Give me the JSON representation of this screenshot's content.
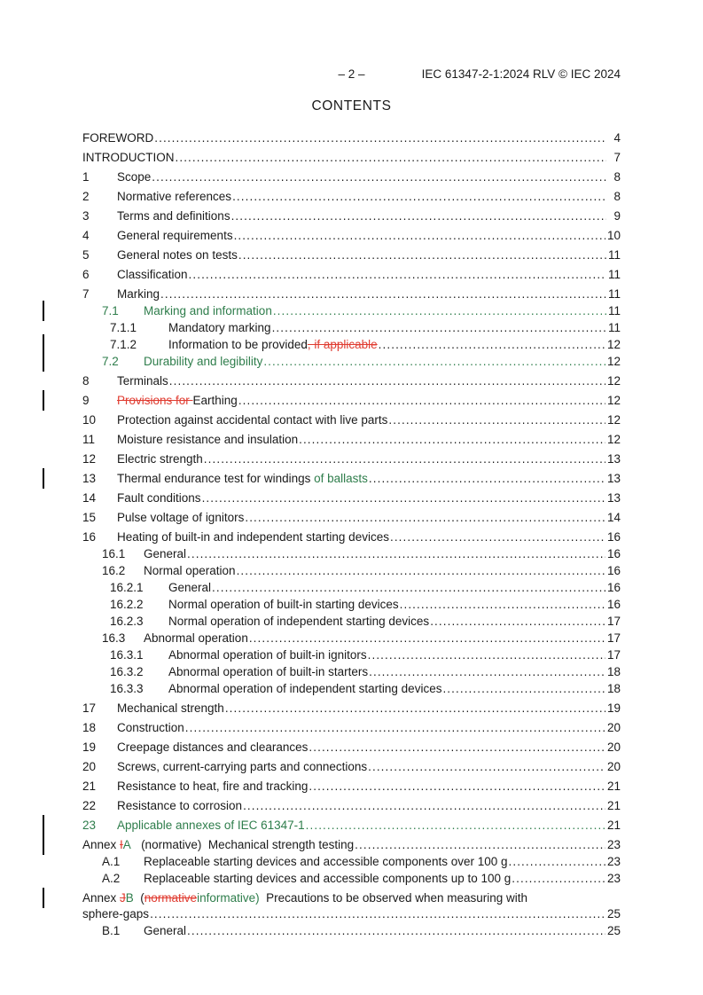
{
  "header": {
    "page_label": "– 2 –",
    "doc_ref": "IEC 61347-2-1:2024 RLV © IEC 2024"
  },
  "title": "CONTENTS",
  "colors": {
    "inserted_text": "#2e7d4b",
    "deleted_text": "#e03c31",
    "body_text": "#1a1a1a"
  },
  "toc": {
    "rows": [
      {
        "level": 0,
        "num": "",
        "segments": [
          {
            "text": "FOREWORD"
          }
        ],
        "page": "4"
      },
      {
        "level": 0,
        "num": "",
        "segments": [
          {
            "text": "INTRODUCTION"
          }
        ],
        "page": "7"
      },
      {
        "level": 1,
        "num": "1",
        "segments": [
          {
            "text": "Scope"
          }
        ],
        "page": "8"
      },
      {
        "level": 1,
        "num": "2",
        "segments": [
          {
            "text": "Normative references"
          }
        ],
        "page": "8"
      },
      {
        "level": 1,
        "num": "3",
        "segments": [
          {
            "text": "Terms and definitions"
          }
        ],
        "page": "9"
      },
      {
        "level": 1,
        "num": "4",
        "segments": [
          {
            "text": "General requirements"
          }
        ],
        "page": "10"
      },
      {
        "level": 1,
        "num": "5",
        "segments": [
          {
            "text": "General notes on tests"
          }
        ],
        "page": "11"
      },
      {
        "level": 1,
        "num": "6",
        "segments": [
          {
            "text": "Classification"
          }
        ],
        "page": "11"
      },
      {
        "level": 1,
        "num": "7",
        "segments": [
          {
            "text": "Marking"
          }
        ],
        "page": "11"
      },
      {
        "level": 2,
        "num": "7.1",
        "ins": true,
        "bar": true,
        "segments": [
          {
            "text": "Marking and information"
          }
        ],
        "page": "11"
      },
      {
        "level": 3,
        "num": "7.1.1",
        "segments": [
          {
            "text": "Mandatory marking"
          }
        ],
        "page": "11"
      },
      {
        "level": 3,
        "num": "7.1.2",
        "bar": true,
        "segments": [
          {
            "text": "Information to be provided"
          },
          {
            "text": ", if applicable",
            "style": "del"
          },
          {
            "text": " "
          }
        ],
        "page": "12"
      },
      {
        "level": 2,
        "num": "7.2",
        "ins": true,
        "bar": true,
        "segments": [
          {
            "text": "Durability and legibility"
          }
        ],
        "page": "12"
      },
      {
        "level": 1,
        "num": "8",
        "segments": [
          {
            "text": "Terminals"
          }
        ],
        "page": "12"
      },
      {
        "level": 1,
        "num": "9",
        "bar": true,
        "segments": [
          {
            "text": "Provisions for ",
            "style": "del"
          },
          {
            "text": "Earthing"
          }
        ],
        "page": "12"
      },
      {
        "level": 1,
        "num": "10",
        "segments": [
          {
            "text": "Protection against accidental contact with live parts"
          }
        ],
        "page": "12"
      },
      {
        "level": 1,
        "num": "11",
        "segments": [
          {
            "text": "Moisture resistance and insulation"
          }
        ],
        "page": "12"
      },
      {
        "level": 1,
        "num": "12",
        "segments": [
          {
            "text": "Electric strength"
          }
        ],
        "page": "13"
      },
      {
        "level": 1,
        "num": "13",
        "bar": true,
        "segments": [
          {
            "text": "Thermal endurance test for windings "
          },
          {
            "text": "of ballasts",
            "style": "ins"
          },
          {
            "text": " "
          }
        ],
        "page": "13"
      },
      {
        "level": 1,
        "num": "14",
        "segments": [
          {
            "text": "Fault conditions"
          }
        ],
        "page": "13"
      },
      {
        "level": 1,
        "num": "15",
        "segments": [
          {
            "text": "Pulse voltage of ignitors"
          }
        ],
        "page": "14"
      },
      {
        "level": 1,
        "num": "16",
        "segments": [
          {
            "text": "Heating of built-in and independent starting devices"
          }
        ],
        "page": "16"
      },
      {
        "level": 2,
        "num": "16.1",
        "segments": [
          {
            "text": "General"
          }
        ],
        "page": "16"
      },
      {
        "level": 2,
        "num": "16.2",
        "segments": [
          {
            "text": "Normal operation"
          }
        ],
        "page": "16"
      },
      {
        "level": 3,
        "num": "16.2.1",
        "segments": [
          {
            "text": "General"
          }
        ],
        "page": "16"
      },
      {
        "level": 3,
        "num": "16.2.2",
        "segments": [
          {
            "text": "Normal operation of built-in starting devices"
          }
        ],
        "page": "16"
      },
      {
        "level": 3,
        "num": "16.2.3",
        "segments": [
          {
            "text": "Normal operation of independent starting devices"
          }
        ],
        "page": "17"
      },
      {
        "level": 2,
        "num": "16.3",
        "segments": [
          {
            "text": "Abnormal operation"
          }
        ],
        "page": "17"
      },
      {
        "level": 3,
        "num": "16.3.1",
        "segments": [
          {
            "text": "Abnormal operation of built-in ignitors"
          }
        ],
        "page": "17"
      },
      {
        "level": 3,
        "num": "16.3.2",
        "segments": [
          {
            "text": "Abnormal operation of built-in starters"
          }
        ],
        "page": "18"
      },
      {
        "level": 3,
        "num": "16.3.3",
        "segments": [
          {
            "text": "Abnormal operation of independent starting devices"
          }
        ],
        "page": "18"
      },
      {
        "level": 1,
        "num": "17",
        "segments": [
          {
            "text": "Mechanical strength"
          }
        ],
        "page": "19"
      },
      {
        "level": 1,
        "num": "18",
        "segments": [
          {
            "text": "Construction"
          }
        ],
        "page": "20"
      },
      {
        "level": 1,
        "num": "19",
        "segments": [
          {
            "text": "Creepage distances and clearances"
          }
        ],
        "page": "20"
      },
      {
        "level": 1,
        "num": "20",
        "segments": [
          {
            "text": "Screws, current-carrying parts and connections"
          }
        ],
        "page": "20"
      },
      {
        "level": 1,
        "num": "21",
        "segments": [
          {
            "text": "Resistance to heat, fire and tracking"
          }
        ],
        "page": "21"
      },
      {
        "level": 1,
        "num": "22",
        "segments": [
          {
            "text": "Resistance to corrosion"
          }
        ],
        "page": "21"
      },
      {
        "level": 1,
        "num": "23",
        "ins": true,
        "bar": true,
        "segments": [
          {
            "text": "Applicable annexes of IEC 61347-1"
          }
        ],
        "page": "21"
      },
      {
        "level": 0,
        "num": "",
        "bar": true,
        "segments": [
          {
            "text": "Annex "
          },
          {
            "text": "I",
            "style": "del"
          },
          {
            "text": "A",
            "style": "ins"
          },
          {
            "text": "   (normative)  Mechanical strength testing"
          }
        ],
        "page": "23"
      },
      {
        "level": 2,
        "num": "A.1",
        "segments": [
          {
            "text": "Replaceable starting devices and accessible components over 100 g"
          }
        ],
        "page": "23"
      },
      {
        "level": 2,
        "num": "A.2",
        "segments": [
          {
            "text": "Replaceable starting devices and accessible components up to 100 g"
          }
        ],
        "page": "23"
      },
      {
        "level": 0,
        "num": "",
        "bar": true,
        "no_dots": true,
        "segments": [
          {
            "text": "Annex "
          },
          {
            "text": "J",
            "style": "del"
          },
          {
            "text": "B",
            "style": "ins"
          },
          {
            "text": "  ("
          },
          {
            "text": "normative",
            "style": "del"
          },
          {
            "text": "informative",
            "style": "ins"
          },
          {
            "text": ")",
            "style": "ins"
          },
          {
            "text": "  Precautions to be observed when measuring with"
          }
        ],
        "page": null
      },
      {
        "level": 0,
        "num": "",
        "cont": true,
        "segments": [
          {
            "text": "sphere-gaps"
          }
        ],
        "page": "25"
      },
      {
        "level": 2,
        "num": "B.1",
        "segments": [
          {
            "text": "General"
          }
        ],
        "page": "25"
      }
    ]
  }
}
